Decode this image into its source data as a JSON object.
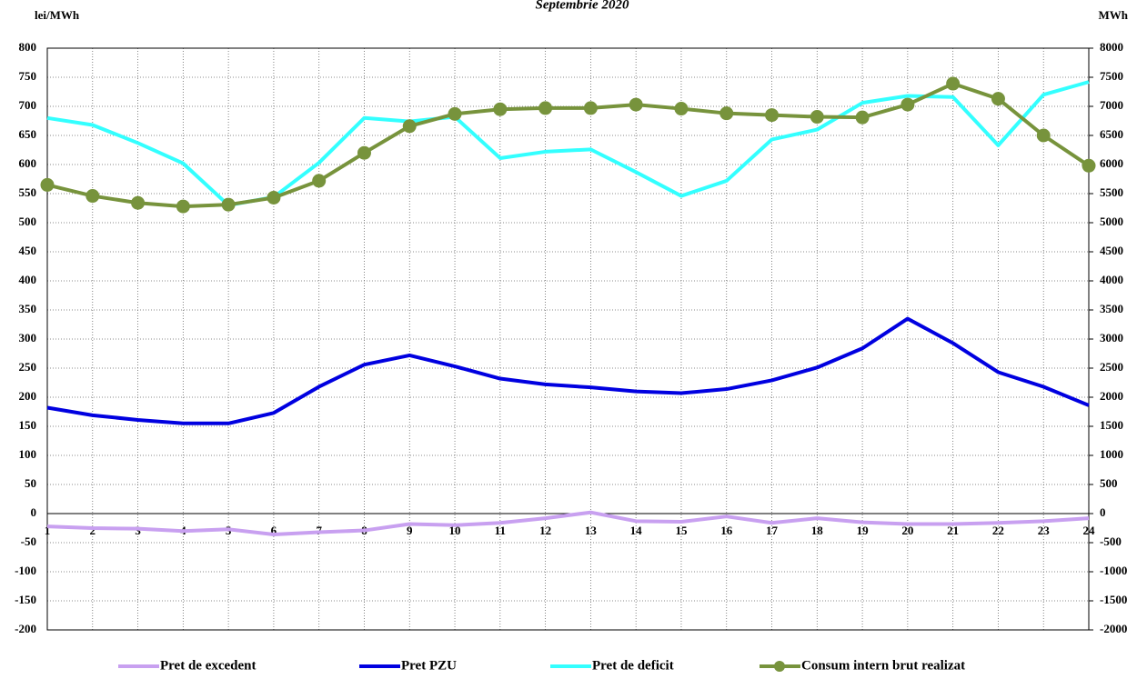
{
  "chart_data": {
    "type": "line",
    "title": "Septembrie 2020",
    "y_label": "lei/MWh",
    "y2_label": "MWh",
    "categories": [
      "1",
      "2",
      "3",
      "4",
      "5",
      "6",
      "7",
      "8",
      "9",
      "10",
      "11",
      "12",
      "13",
      "14",
      "15",
      "16",
      "17",
      "18",
      "19",
      "20",
      "21",
      "22",
      "23",
      "24"
    ],
    "series": [
      {
        "name": "Pret de excedent",
        "color": "#c8a0f0",
        "values": [
          -22,
          -25,
          -26,
          -30,
          -27,
          -36,
          -32,
          -29,
          -18,
          -20,
          -16,
          -8,
          2,
          -13,
          -14,
          -5,
          -16,
          -8,
          -15,
          -18,
          -18,
          -16,
          -13,
          -8
        ]
      },
      {
        "name": "Pret PZU",
        "color": "#0000e0",
        "values": [
          182,
          169,
          161,
          155,
          155,
          173,
          218,
          256,
          272,
          253,
          232,
          222,
          217,
          210,
          207,
          214,
          229,
          251,
          284,
          335,
          293,
          243,
          218,
          186
        ]
      },
      {
        "name": "Pret de deficit",
        "color": "#33ffff",
        "values": [
          680,
          668,
          637,
          602,
          530,
          544,
          603,
          680,
          674,
          682,
          611,
          622,
          626,
          587,
          546,
          572,
          643,
          660,
          706,
          718,
          716,
          633,
          720,
          742
        ]
      },
      {
        "name": "Consum intern brut realizat",
        "color": "#77933c",
        "axis": "y2",
        "markers": true,
        "values": [
          5650,
          5460,
          5340,
          5280,
          5310,
          5430,
          5720,
          6200,
          6660,
          6870,
          6950,
          6970,
          6970,
          7030,
          6960,
          6880,
          6850,
          6820,
          6810,
          7030,
          7390,
          7130,
          6500,
          5980
        ]
      }
    ],
    "ylim": [
      -200,
      800
    ],
    "yticks": [
      -200,
      -150,
      -100,
      -50,
      0,
      50,
      100,
      150,
      200,
      250,
      300,
      350,
      400,
      450,
      500,
      550,
      600,
      650,
      700,
      750,
      800
    ],
    "y2lim": [
      -2000,
      8000
    ],
    "y2ticks": [
      -2000,
      -1500,
      -1000,
      -500,
      0,
      500,
      1000,
      1500,
      2000,
      2500,
      3000,
      3500,
      4000,
      4500,
      5000,
      5500,
      6000,
      6500,
      7000,
      7500,
      8000
    ],
    "grid": true,
    "legend": "bottom"
  }
}
